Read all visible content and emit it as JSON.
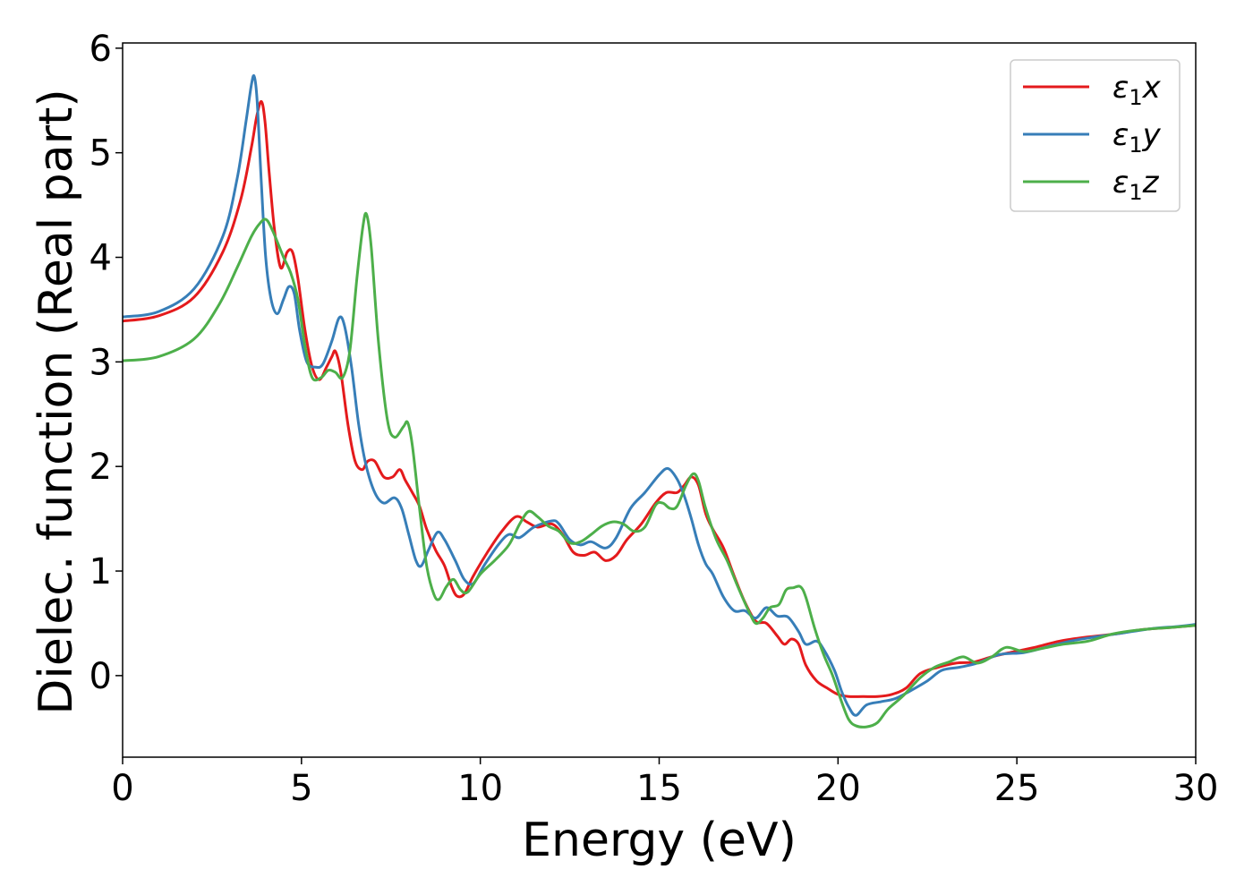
{
  "chart_data": {
    "type": "line",
    "title": "",
    "xlabel": "Energy (eV)",
    "ylabel": "Dielec. function (Real part)",
    "xlim": [
      0,
      30
    ],
    "ylim": [
      -0.78,
      6.05
    ],
    "xticks": [
      0,
      5,
      10,
      15,
      20,
      25,
      30
    ],
    "yticks": [
      0,
      1,
      2,
      3,
      4,
      5,
      6
    ],
    "xtick_labels": [
      "0",
      "5",
      "10",
      "15",
      "20",
      "25",
      "30"
    ],
    "ytick_labels": [
      "0",
      "1",
      "2",
      "3",
      "4",
      "5",
      "6"
    ],
    "grid": false,
    "legend_position": "top-right",
    "series": [
      {
        "name": "ε₁x",
        "label_base": "ε",
        "label_sub": "1",
        "label_suffix": "x",
        "color": "#e41a1c",
        "points": [
          [
            0,
            3.39
          ],
          [
            1,
            3.44
          ],
          [
            2,
            3.62
          ],
          [
            2.8,
            4.05
          ],
          [
            3.3,
            4.55
          ],
          [
            3.6,
            5.05
          ],
          [
            3.75,
            5.35
          ],
          [
            3.88,
            5.49
          ],
          [
            3.98,
            5.3
          ],
          [
            4.1,
            4.8
          ],
          [
            4.25,
            4.25
          ],
          [
            4.42,
            3.9
          ],
          [
            4.6,
            4.05
          ],
          [
            4.75,
            4.05
          ],
          [
            4.9,
            3.8
          ],
          [
            5.1,
            3.3
          ],
          [
            5.3,
            2.95
          ],
          [
            5.5,
            2.83
          ],
          [
            5.7,
            2.95
          ],
          [
            5.85,
            3.05
          ],
          [
            5.95,
            3.1
          ],
          [
            6.1,
            2.9
          ],
          [
            6.3,
            2.4
          ],
          [
            6.5,
            2.05
          ],
          [
            6.7,
            1.97
          ],
          [
            6.85,
            2.05
          ],
          [
            7.05,
            2.05
          ],
          [
            7.3,
            1.9
          ],
          [
            7.55,
            1.9
          ],
          [
            7.75,
            1.97
          ],
          [
            7.9,
            1.87
          ],
          [
            8.1,
            1.75
          ],
          [
            8.3,
            1.62
          ],
          [
            8.5,
            1.4
          ],
          [
            8.75,
            1.2
          ],
          [
            9,
            1.05
          ],
          [
            9.2,
            0.85
          ],
          [
            9.35,
            0.76
          ],
          [
            9.55,
            0.78
          ],
          [
            9.8,
            0.95
          ],
          [
            10.2,
            1.18
          ],
          [
            10.6,
            1.38
          ],
          [
            11,
            1.52
          ],
          [
            11.3,
            1.47
          ],
          [
            11.6,
            1.42
          ],
          [
            12,
            1.45
          ],
          [
            12.3,
            1.35
          ],
          [
            12.6,
            1.18
          ],
          [
            12.9,
            1.15
          ],
          [
            13.2,
            1.18
          ],
          [
            13.5,
            1.1
          ],
          [
            13.8,
            1.15
          ],
          [
            14.1,
            1.3
          ],
          [
            14.5,
            1.45
          ],
          [
            14.9,
            1.65
          ],
          [
            15.2,
            1.75
          ],
          [
            15.5,
            1.75
          ],
          [
            15.7,
            1.82
          ],
          [
            15.9,
            1.9
          ],
          [
            16.1,
            1.82
          ],
          [
            16.3,
            1.55
          ],
          [
            16.5,
            1.4
          ],
          [
            16.8,
            1.22
          ],
          [
            17.1,
            0.95
          ],
          [
            17.4,
            0.7
          ],
          [
            17.7,
            0.52
          ],
          [
            18,
            0.5
          ],
          [
            18.3,
            0.38
          ],
          [
            18.5,
            0.3
          ],
          [
            18.7,
            0.35
          ],
          [
            18.9,
            0.3
          ],
          [
            19.1,
            0.1
          ],
          [
            19.4,
            -0.05
          ],
          [
            19.7,
            -0.12
          ],
          [
            20,
            -0.18
          ],
          [
            20.3,
            -0.2
          ],
          [
            20.7,
            -0.2
          ],
          [
            21.1,
            -0.2
          ],
          [
            21.5,
            -0.18
          ],
          [
            21.9,
            -0.12
          ],
          [
            22.3,
            0.02
          ],
          [
            22.8,
            0.08
          ],
          [
            23.3,
            0.12
          ],
          [
            23.8,
            0.13
          ],
          [
            24.3,
            0.18
          ],
          [
            24.8,
            0.22
          ],
          [
            25.5,
            0.27
          ],
          [
            26.2,
            0.33
          ],
          [
            27,
            0.37
          ],
          [
            27.8,
            0.4
          ],
          [
            28.5,
            0.44
          ],
          [
            29.3,
            0.46
          ],
          [
            30,
            0.48
          ]
        ]
      },
      {
        "name": "ε₁y",
        "label_base": "ε",
        "label_sub": "1",
        "label_suffix": "y",
        "color": "#377eb8",
        "points": [
          [
            0,
            3.43
          ],
          [
            1,
            3.48
          ],
          [
            2,
            3.7
          ],
          [
            2.8,
            4.2
          ],
          [
            3.2,
            4.75
          ],
          [
            3.45,
            5.3
          ],
          [
            3.6,
            5.65
          ],
          [
            3.68,
            5.73
          ],
          [
            3.76,
            5.5
          ],
          [
            3.88,
            4.7
          ],
          [
            4,
            4.0
          ],
          [
            4.15,
            3.6
          ],
          [
            4.32,
            3.46
          ],
          [
            4.5,
            3.6
          ],
          [
            4.65,
            3.72
          ],
          [
            4.8,
            3.65
          ],
          [
            4.95,
            3.3
          ],
          [
            5.15,
            3.0
          ],
          [
            5.4,
            2.95
          ],
          [
            5.6,
            2.98
          ],
          [
            5.85,
            3.2
          ],
          [
            6.05,
            3.42
          ],
          [
            6.2,
            3.35
          ],
          [
            6.4,
            2.95
          ],
          [
            6.6,
            2.4
          ],
          [
            6.8,
            2.02
          ],
          [
            7.05,
            1.75
          ],
          [
            7.3,
            1.65
          ],
          [
            7.6,
            1.7
          ],
          [
            7.8,
            1.6
          ],
          [
            8,
            1.35
          ],
          [
            8.2,
            1.1
          ],
          [
            8.35,
            1.05
          ],
          [
            8.55,
            1.2
          ],
          [
            8.8,
            1.37
          ],
          [
            9,
            1.3
          ],
          [
            9.3,
            1.1
          ],
          [
            9.55,
            0.92
          ],
          [
            9.8,
            0.88
          ],
          [
            10.1,
            1.05
          ],
          [
            10.5,
            1.25
          ],
          [
            10.8,
            1.35
          ],
          [
            11.1,
            1.32
          ],
          [
            11.5,
            1.42
          ],
          [
            12,
            1.48
          ],
          [
            12.2,
            1.45
          ],
          [
            12.5,
            1.3
          ],
          [
            12.8,
            1.25
          ],
          [
            13.1,
            1.28
          ],
          [
            13.5,
            1.22
          ],
          [
            13.8,
            1.32
          ],
          [
            14.2,
            1.6
          ],
          [
            14.6,
            1.75
          ],
          [
            15,
            1.92
          ],
          [
            15.25,
            1.98
          ],
          [
            15.5,
            1.88
          ],
          [
            15.7,
            1.72
          ],
          [
            15.9,
            1.5
          ],
          [
            16.1,
            1.25
          ],
          [
            16.3,
            1.07
          ],
          [
            16.5,
            0.97
          ],
          [
            16.8,
            0.75
          ],
          [
            17.1,
            0.62
          ],
          [
            17.4,
            0.62
          ],
          [
            17.7,
            0.55
          ],
          [
            18,
            0.65
          ],
          [
            18.3,
            0.57
          ],
          [
            18.6,
            0.56
          ],
          [
            18.9,
            0.42
          ],
          [
            19.1,
            0.3
          ],
          [
            19.4,
            0.33
          ],
          [
            19.6,
            0.25
          ],
          [
            19.9,
            0.05
          ],
          [
            20.1,
            -0.15
          ],
          [
            20.3,
            -0.3
          ],
          [
            20.5,
            -0.38
          ],
          [
            20.8,
            -0.28
          ],
          [
            21.2,
            -0.25
          ],
          [
            21.6,
            -0.22
          ],
          [
            22,
            -0.15
          ],
          [
            22.5,
            -0.05
          ],
          [
            22.9,
            0.05
          ],
          [
            23.4,
            0.08
          ],
          [
            23.9,
            0.12
          ],
          [
            24.5,
            0.2
          ],
          [
            25.2,
            0.22
          ],
          [
            25.8,
            0.27
          ],
          [
            26.5,
            0.33
          ],
          [
            27.2,
            0.37
          ],
          [
            28,
            0.41
          ],
          [
            28.8,
            0.45
          ],
          [
            29.5,
            0.47
          ],
          [
            30,
            0.49
          ]
        ]
      },
      {
        "name": "ε₁z",
        "label_base": "ε",
        "label_sub": "1",
        "label_suffix": "z",
        "color": "#4daf4a",
        "points": [
          [
            0,
            3.01
          ],
          [
            1,
            3.05
          ],
          [
            2,
            3.22
          ],
          [
            2.7,
            3.55
          ],
          [
            3.2,
            3.9
          ],
          [
            3.6,
            4.2
          ],
          [
            3.85,
            4.33
          ],
          [
            4.02,
            4.36
          ],
          [
            4.2,
            4.25
          ],
          [
            4.5,
            4.0
          ],
          [
            4.7,
            3.85
          ],
          [
            4.9,
            3.6
          ],
          [
            5.1,
            3.15
          ],
          [
            5.3,
            2.85
          ],
          [
            5.55,
            2.85
          ],
          [
            5.75,
            2.92
          ],
          [
            5.95,
            2.9
          ],
          [
            6.15,
            2.85
          ],
          [
            6.35,
            3.1
          ],
          [
            6.55,
            3.8
          ],
          [
            6.72,
            4.3
          ],
          [
            6.82,
            4.41
          ],
          [
            6.95,
            4.1
          ],
          [
            7.15,
            3.2
          ],
          [
            7.4,
            2.45
          ],
          [
            7.6,
            2.28
          ],
          [
            7.85,
            2.38
          ],
          [
            7.97,
            2.42
          ],
          [
            8.1,
            2.2
          ],
          [
            8.3,
            1.6
          ],
          [
            8.5,
            1.05
          ],
          [
            8.7,
            0.78
          ],
          [
            8.85,
            0.73
          ],
          [
            9.05,
            0.85
          ],
          [
            9.25,
            0.92
          ],
          [
            9.45,
            0.82
          ],
          [
            9.65,
            0.8
          ],
          [
            10,
            0.97
          ],
          [
            10.4,
            1.1
          ],
          [
            10.8,
            1.25
          ],
          [
            11.1,
            1.45
          ],
          [
            11.35,
            1.57
          ],
          [
            11.6,
            1.52
          ],
          [
            11.9,
            1.43
          ],
          [
            12.2,
            1.38
          ],
          [
            12.5,
            1.27
          ],
          [
            12.8,
            1.28
          ],
          [
            13.1,
            1.35
          ],
          [
            13.4,
            1.43
          ],
          [
            13.7,
            1.47
          ],
          [
            14,
            1.45
          ],
          [
            14.3,
            1.38
          ],
          [
            14.6,
            1.42
          ],
          [
            14.9,
            1.63
          ],
          [
            15.1,
            1.65
          ],
          [
            15.3,
            1.6
          ],
          [
            15.5,
            1.62
          ],
          [
            15.75,
            1.82
          ],
          [
            15.95,
            1.93
          ],
          [
            16.1,
            1.86
          ],
          [
            16.3,
            1.6
          ],
          [
            16.6,
            1.3
          ],
          [
            16.9,
            1.1
          ],
          [
            17.2,
            0.85
          ],
          [
            17.5,
            0.62
          ],
          [
            17.7,
            0.5
          ],
          [
            17.9,
            0.55
          ],
          [
            18.1,
            0.65
          ],
          [
            18.35,
            0.68
          ],
          [
            18.55,
            0.82
          ],
          [
            18.75,
            0.84
          ],
          [
            18.95,
            0.85
          ],
          [
            19.1,
            0.75
          ],
          [
            19.35,
            0.45
          ],
          [
            19.6,
            0.2
          ],
          [
            19.85,
            0.0
          ],
          [
            20.1,
            -0.25
          ],
          [
            20.3,
            -0.42
          ],
          [
            20.5,
            -0.48
          ],
          [
            20.8,
            -0.49
          ],
          [
            21.1,
            -0.45
          ],
          [
            21.4,
            -0.32
          ],
          [
            21.8,
            -0.2
          ],
          [
            22.3,
            -0.02
          ],
          [
            22.7,
            0.08
          ],
          [
            23.1,
            0.13
          ],
          [
            23.5,
            0.18
          ],
          [
            23.9,
            0.12
          ],
          [
            24.3,
            0.18
          ],
          [
            24.7,
            0.27
          ],
          [
            25.2,
            0.23
          ],
          [
            25.7,
            0.26
          ],
          [
            26.3,
            0.3
          ],
          [
            27,
            0.33
          ],
          [
            27.7,
            0.4
          ],
          [
            28.5,
            0.44
          ],
          [
            29.3,
            0.46
          ],
          [
            30,
            0.48
          ]
        ]
      }
    ]
  }
}
